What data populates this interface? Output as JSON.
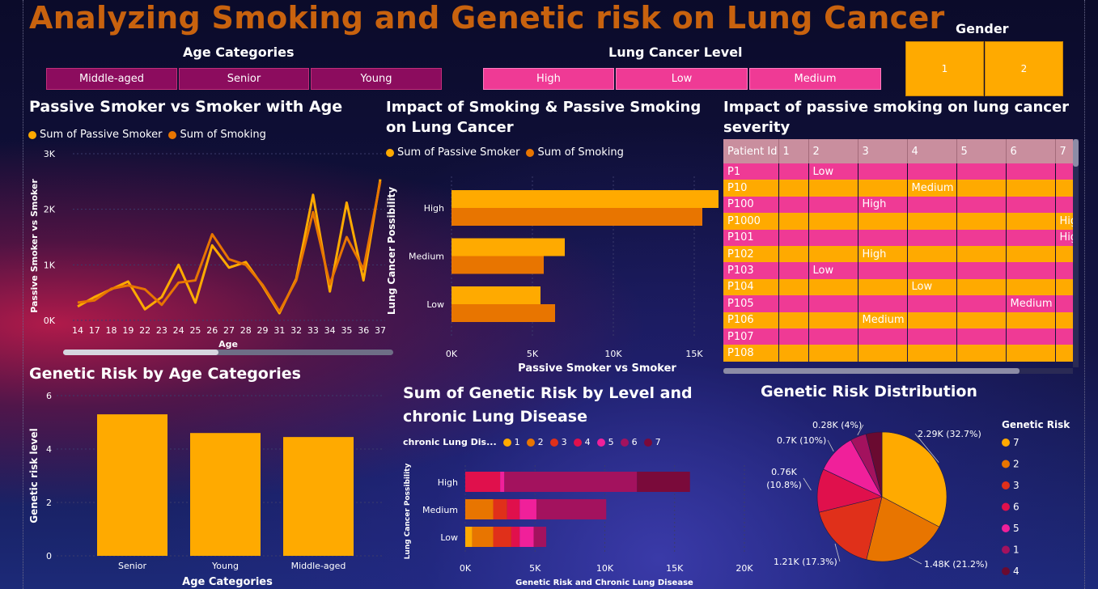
{
  "title": "Analyzing Smoking and Genetic risk on Lung Cancer",
  "slicers": {
    "age": {
      "title": "Age Categories",
      "items": [
        "Middle-aged",
        "Senior",
        "Young"
      ]
    },
    "level": {
      "title": "Lung Cancer Level",
      "items": [
        "High",
        "Low",
        "Medium"
      ]
    },
    "gender": {
      "title": "Gender",
      "items": [
        "1",
        "2"
      ]
    }
  },
  "colors": {
    "amber": "#ffaa00",
    "orange": "#e87500",
    "title": "#c8620e",
    "pink": "#ef3a95",
    "magenta": "#8c0c5e"
  },
  "chart_data": [
    {
      "id": "line",
      "type": "line",
      "title": "Passive Smoker vs Smoker with Age",
      "xlabel": "Age",
      "ylabel": "Passive Smoker vs Smoker",
      "ylim": [
        0,
        3000
      ],
      "yticks": [
        "0K",
        "1K",
        "2K",
        "3K"
      ],
      "x": [
        "14",
        "17",
        "18",
        "19",
        "22",
        "23",
        "24",
        "25",
        "26",
        "27",
        "28",
        "29",
        "31",
        "32",
        "33",
        "34",
        "35",
        "36",
        "37"
      ],
      "series": [
        {
          "name": "Sum of Passive Smoker",
          "color": "#ffaa00",
          "values": [
            250,
            420,
            560,
            700,
            200,
            420,
            1000,
            320,
            1350,
            950,
            1050,
            620,
            130,
            750,
            2260,
            520,
            2120,
            720,
            2540
          ]
        },
        {
          "name": "Sum of Smoking",
          "color": "#e87500",
          "values": [
            320,
            360,
            570,
            630,
            560,
            280,
            680,
            720,
            1550,
            1100,
            1000,
            640,
            160,
            720,
            1950,
            650,
            1500,
            920,
            2500
          ]
        }
      ]
    },
    {
      "id": "hbar",
      "type": "bar",
      "title": "Impact of Smoking & Passive Smoking on Lung Cancer",
      "xlabel": "Passive Smoker vs Smoker",
      "ylabel": "Lung Cancer Possibility",
      "xlim": [
        0,
        16500
      ],
      "xticks": [
        "0K",
        "5K",
        "10K",
        "15K"
      ],
      "categories": [
        "High",
        "Medium",
        "Low"
      ],
      "series": [
        {
          "name": "Sum of Passive Smoker",
          "color": "#ffaa00",
          "values": [
            16500,
            7000,
            5500
          ]
        },
        {
          "name": "Sum of Smoking",
          "color": "#e87500",
          "values": [
            15500,
            5700,
            6400
          ]
        }
      ]
    },
    {
      "id": "vbar",
      "type": "bar",
      "title": "Genetic Risk by Age Categories",
      "xlabel": "Age Categories",
      "ylabel": "Genetic risk level",
      "ylim": [
        0,
        6
      ],
      "yticks": [
        "0",
        "2",
        "4",
        "6"
      ],
      "categories": [
        "Senior",
        "Young",
        "Middle-aged"
      ],
      "values": [
        5.3,
        4.6,
        4.45
      ]
    },
    {
      "id": "stacked",
      "type": "bar",
      "title": "Sum of Genetic Risk by Level and chronic Lung Disease",
      "legend_title": "chronic Lung Dis...",
      "xlabel": "Genetic Risk and Chronic Lung Disease",
      "ylabel": "Lung Cancer Possibility",
      "xlim": [
        0,
        20000
      ],
      "xticks": [
        "0K",
        "5K",
        "10K",
        "15K",
        "20K"
      ],
      "categories": [
        "High",
        "Medium",
        "Low"
      ],
      "series": [
        {
          "name": "1",
          "color": "#ffaa00",
          "values": [
            0,
            0,
            500
          ]
        },
        {
          "name": "2",
          "color": "#e87500",
          "values": [
            0,
            2000,
            1500
          ]
        },
        {
          "name": "3",
          "color": "#e0301a",
          "values": [
            0,
            1000,
            1300
          ]
        },
        {
          "name": "4",
          "color": "#e0104c",
          "values": [
            2500,
            900,
            600
          ]
        },
        {
          "name": "5",
          "color": "#f0209a",
          "values": [
            300,
            1200,
            1000
          ]
        },
        {
          "name": "6",
          "color": "#a3125e",
          "values": [
            9500,
            5000,
            900
          ]
        },
        {
          "name": "7",
          "color": "#7a0a3a",
          "values": [
            3800,
            0,
            0
          ]
        }
      ]
    },
    {
      "id": "pie",
      "type": "pie",
      "title": "Genetic Risk Distribution",
      "legend_title": "Genetic Risk",
      "slices": [
        {
          "name": "7",
          "value": 2.29,
          "label": "2.29K (32.7%)",
          "color": "#ffaa00"
        },
        {
          "name": "2",
          "value": 1.48,
          "label": "1.48K (21.2%)",
          "color": "#e87500"
        },
        {
          "name": "3",
          "value": 1.21,
          "label": "1.21K (17.3%)",
          "color": "#e0301a"
        },
        {
          "name": "6",
          "value": 0.76,
          "label": "0.76K (10.8%)",
          "color": "#e0104c"
        },
        {
          "name": "5",
          "value": 0.7,
          "label": "0.7K (10%)",
          "color": "#f0209a"
        },
        {
          "name": "1",
          "value": 0.28,
          "label": "0.28K (4%)",
          "color": "#a3125e"
        },
        {
          "name": "4",
          "value": 0.28,
          "label": "",
          "color": "#6a0a30"
        }
      ],
      "legend": [
        "7",
        "2",
        "3",
        "6",
        "5",
        "1",
        "4"
      ]
    }
  ],
  "table": {
    "title": "Impact of passive smoking on lung cancer severity",
    "columns": [
      "Patient Id",
      "1",
      "2",
      "3",
      "4",
      "5",
      "6",
      "7"
    ],
    "rows": [
      {
        "id": "P1",
        "col": 2,
        "value": "Low"
      },
      {
        "id": "P10",
        "col": 4,
        "value": "Medium"
      },
      {
        "id": "P100",
        "col": 3,
        "value": "High"
      },
      {
        "id": "P1000",
        "col": 7,
        "value": "High"
      },
      {
        "id": "P101",
        "col": 7,
        "value": "High"
      },
      {
        "id": "P102",
        "col": 3,
        "value": "High"
      },
      {
        "id": "P103",
        "col": 2,
        "value": "Low"
      },
      {
        "id": "P104",
        "col": 4,
        "value": "Low"
      },
      {
        "id": "P105",
        "col": 6,
        "value": "Medium"
      },
      {
        "id": "P106",
        "col": 3,
        "value": "Medium"
      },
      {
        "id": "P107",
        "col": 0,
        "value": ""
      },
      {
        "id": "P108",
        "col": 0,
        "value": ""
      }
    ]
  }
}
